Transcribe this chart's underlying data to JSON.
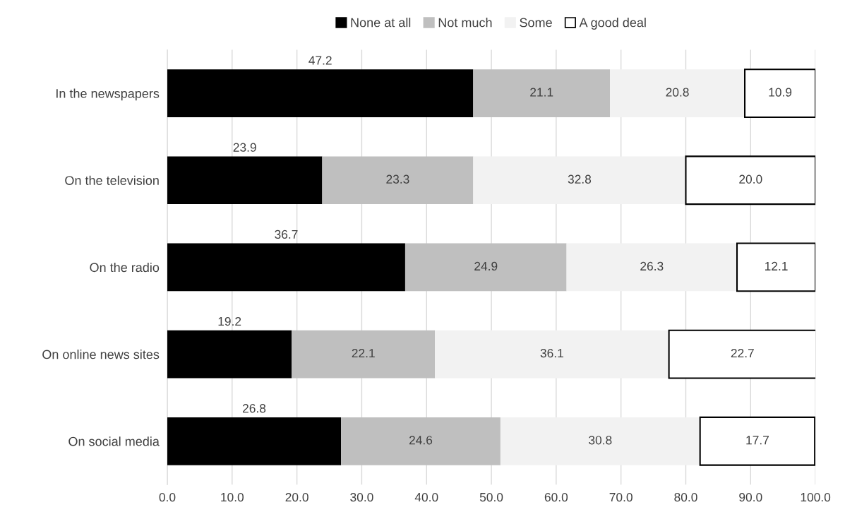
{
  "chart_data": {
    "type": "bar",
    "orientation": "horizontal",
    "stacked": true,
    "categories": [
      "In the newspapers",
      "On the television",
      "On the radio",
      "On online news sites",
      "On social media"
    ],
    "series": [
      {
        "name": "None at all",
        "color": "#000000",
        "values": [
          47.2,
          23.9,
          36.7,
          19.2,
          26.8
        ],
        "value_labels": [
          "47.2",
          "23.9",
          "36.7",
          "19.2",
          "26.8"
        ]
      },
      {
        "name": "Not much",
        "color": "#bfbfbf",
        "values": [
          21.1,
          23.3,
          24.9,
          22.1,
          24.6
        ],
        "value_labels": [
          "21.1",
          "23.3",
          "24.9",
          "22.1",
          "24.6"
        ]
      },
      {
        "name": "Some",
        "color": "#f2f2f2",
        "values": [
          20.8,
          32.8,
          26.3,
          36.1,
          30.8
        ],
        "value_labels": [
          "20.8",
          "32.8",
          "26.3",
          "36.1",
          "30.8"
        ]
      },
      {
        "name": "A good deal",
        "color": "#ffffff",
        "values": [
          10.9,
          20.0,
          12.1,
          22.7,
          17.7
        ],
        "value_labels": [
          "10.9",
          "20.0",
          "12.1",
          "22.7",
          "17.7"
        ]
      }
    ],
    "xlim": [
      0,
      100
    ],
    "xticks": [
      {
        "value": 0,
        "label": "0.0"
      },
      {
        "value": 10,
        "label": "10.0"
      },
      {
        "value": 20,
        "label": "20.0"
      },
      {
        "value": 30,
        "label": "30.0"
      },
      {
        "value": 40,
        "label": "40.0"
      },
      {
        "value": 50,
        "label": "50.0"
      },
      {
        "value": 60,
        "label": "60.0"
      },
      {
        "value": 70,
        "label": "70.0"
      },
      {
        "value": 80,
        "label": "80.0"
      },
      {
        "value": 90,
        "label": "90.0"
      },
      {
        "value": 100,
        "label": "100.0"
      }
    ],
    "grid": "x",
    "legend": "top"
  }
}
